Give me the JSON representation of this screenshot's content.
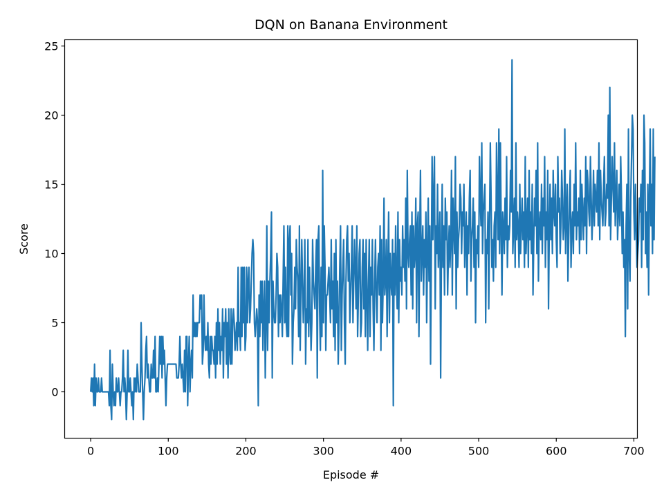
{
  "chart_data": {
    "type": "line",
    "title": "DQN on Banana Environment",
    "xlabel": "Episode #",
    "ylabel": "Score",
    "xlim": [
      -33.5,
      704.5
    ],
    "ylim": [
      -3.35,
      25.45
    ],
    "xticks": [
      0,
      100,
      200,
      300,
      400,
      500,
      600,
      700
    ],
    "yticks": [
      0,
      5,
      10,
      15,
      20,
      25
    ],
    "grid": false,
    "legend": "none",
    "series": [
      {
        "color": "#1f77b4",
        "x_start": 0,
        "values": [
          0,
          1,
          0,
          1,
          -1,
          2,
          -1,
          1,
          0,
          0,
          1,
          0,
          0,
          0,
          1,
          0,
          0,
          0,
          0,
          0,
          0,
          0,
          0,
          0,
          -1,
          3,
          -1,
          -2,
          2,
          0,
          -1,
          0,
          -1,
          1,
          0,
          0,
          1,
          0,
          -1,
          0,
          0,
          1,
          3,
          0,
          1,
          0,
          -2,
          0,
          3,
          0,
          0,
          1,
          0,
          -1,
          0,
          -2,
          1,
          0,
          1,
          0,
          2,
          1,
          0,
          0,
          0,
          5,
          2,
          0,
          -2,
          0,
          1,
          3,
          4,
          1,
          2,
          1,
          0,
          0,
          2,
          1,
          1,
          3,
          1,
          4,
          0,
          0,
          1,
          0,
          2,
          4,
          2,
          4,
          1,
          4,
          2,
          3,
          1,
          -1,
          1,
          2,
          2,
          2,
          2,
          2,
          2,
          2,
          2,
          2,
          2,
          2,
          2,
          1,
          1,
          1,
          2,
          4,
          2,
          1,
          2,
          1,
          0,
          3,
          0,
          4,
          4,
          -1,
          2,
          4,
          0,
          2,
          3,
          1,
          7,
          4,
          5,
          4,
          5,
          4,
          5,
          5,
          5,
          7,
          6,
          7,
          2,
          3,
          7,
          4,
          3,
          4,
          3,
          5,
          2,
          1,
          4,
          2,
          4,
          3,
          3,
          2,
          4,
          1,
          5,
          2,
          6,
          3,
          5,
          2,
          4,
          3,
          6,
          1,
          5,
          4,
          6,
          2,
          5,
          1,
          6,
          3,
          2,
          6,
          2,
          5,
          6,
          5,
          3,
          4,
          5,
          3,
          9,
          4,
          5,
          3,
          9,
          4,
          9,
          5,
          9,
          3,
          4,
          9,
          5,
          8,
          9,
          5,
          6,
          8,
          10,
          11,
          10,
          5,
          4,
          5,
          6,
          5,
          -1,
          7,
          4,
          8,
          5,
          8,
          3,
          6,
          8,
          1,
          5,
          12,
          3,
          8,
          5,
          8,
          10,
          13,
          1,
          8,
          6,
          5,
          5,
          7,
          10,
          9,
          4,
          7,
          5,
          7,
          6,
          4,
          8,
          12,
          5,
          9,
          5,
          4,
          12,
          4,
          11,
          12,
          7,
          10,
          2,
          5,
          6,
          9,
          6,
          11,
          9,
          8,
          4,
          12,
          3,
          7,
          11,
          8,
          5,
          7,
          11,
          2,
          6,
          5,
          11,
          4,
          9,
          6,
          3,
          5,
          11,
          8,
          7,
          6,
          9,
          11,
          1,
          11,
          12,
          6,
          3,
          9,
          4,
          16,
          5,
          12,
          9,
          3,
          7,
          7,
          8,
          9,
          7,
          5,
          11,
          6,
          8,
          4,
          10,
          3,
          11,
          5,
          8,
          2,
          5,
          9,
          12,
          3,
          7,
          9,
          11,
          5,
          2,
          8,
          11,
          12,
          8,
          10,
          5,
          7,
          9,
          12,
          5,
          8,
          11,
          9,
          6,
          12,
          4,
          7,
          10,
          11,
          4,
          5,
          9,
          11,
          6,
          10,
          4,
          11,
          7,
          3,
          8,
          11,
          4,
          9,
          7,
          11,
          6,
          3,
          8,
          11,
          7,
          5,
          9,
          10,
          7,
          12,
          3,
          11,
          5,
          8,
          14,
          7,
          8,
          11,
          4,
          9,
          13,
          5,
          10,
          8,
          7,
          11,
          -1,
          10,
          7,
          12,
          8,
          6,
          13,
          5,
          11,
          8,
          9,
          7,
          12,
          9,
          11,
          8,
          14,
          6,
          16,
          10,
          9,
          11,
          12,
          7,
          13,
          6,
          12,
          9,
          10,
          14,
          5,
          12,
          13,
          4,
          11,
          16,
          8,
          10,
          12,
          7,
          11,
          9,
          13,
          5,
          10,
          14,
          8,
          12,
          2,
          10,
          17,
          11,
          14,
          17,
          6,
          12,
          10,
          15,
          9,
          11,
          13,
          1,
          10,
          15,
          9,
          12,
          7,
          14,
          11,
          13,
          7,
          10,
          12,
          9,
          11,
          16,
          7,
          14,
          12,
          10,
          17,
          6,
          13,
          9,
          11,
          12,
          15,
          14,
          10,
          13,
          12,
          15,
          9,
          11,
          13,
          7,
          12,
          10,
          14,
          16,
          8,
          11,
          12,
          14,
          9,
          13,
          5,
          11,
          10,
          12,
          9,
          17,
          14,
          12,
          18,
          10,
          13,
          14,
          15,
          5,
          11,
          10,
          13,
          6,
          12,
          18,
          14,
          9,
          11,
          8,
          12,
          13,
          9,
          18,
          14,
          11,
          19,
          10,
          18,
          12,
          7,
          13,
          12,
          10,
          14,
          11,
          17,
          9,
          12,
          11,
          12,
          16,
          13,
          24,
          10,
          12,
          14,
          9,
          18,
          11,
          13,
          12,
          9,
          15,
          10,
          12,
          14,
          11,
          13,
          9,
          17,
          10,
          12,
          14,
          9,
          16,
          11,
          13,
          10,
          15,
          7,
          11,
          14,
          12,
          16,
          10,
          18,
          8,
          12,
          13,
          11,
          15,
          10,
          14,
          12,
          17,
          9,
          13,
          11,
          16,
          6,
          12,
          15,
          11,
          14,
          10,
          16,
          13,
          12,
          15,
          11,
          9,
          17,
          13,
          14,
          10,
          12,
          16,
          14,
          11,
          12,
          19,
          10,
          13,
          15,
          8,
          11,
          14,
          16,
          9,
          12,
          13,
          10,
          15,
          12,
          18,
          11,
          13,
          12,
          14,
          10,
          16,
          11,
          15,
          13,
          11,
          14,
          12,
          17,
          10,
          16,
          15,
          13,
          12,
          17,
          14,
          11,
          13,
          16,
          12,
          15,
          14,
          13,
          16,
          12,
          18,
          11,
          16,
          14,
          13,
          12,
          15,
          17,
          12,
          13,
          15,
          14,
          20,
          12,
          22,
          11,
          14,
          17,
          15,
          13,
          18,
          12,
          14,
          16,
          11,
          13,
          15,
          12,
          17,
          14,
          10,
          13,
          9,
          11,
          4,
          12,
          15,
          6,
          19,
          10,
          8,
          14,
          17,
          20,
          19,
          13,
          11,
          15,
          12,
          9,
          10,
          11,
          14,
          13,
          15,
          9,
          16,
          11,
          20,
          18,
          10,
          13,
          9,
          15,
          7,
          14,
          19,
          12,
          15,
          10,
          19,
          11,
          17
        ]
      }
    ]
  }
}
